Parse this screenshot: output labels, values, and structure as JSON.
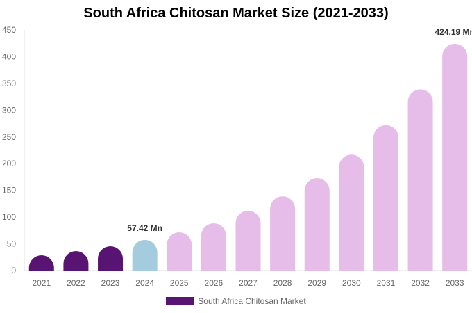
{
  "chart_data": {
    "type": "bar",
    "title": "South Africa Chitosan Market Size (2021-2033)",
    "categories": [
      "2021",
      "2022",
      "2023",
      "2024",
      "2025",
      "2026",
      "2027",
      "2028",
      "2029",
      "2030",
      "2031",
      "2032",
      "2033"
    ],
    "series": [
      {
        "name": "South Africa Chitosan Market",
        "values": [
          28.6,
          36.4,
          45.5,
          57.42,
          71.5,
          88.4,
          111.8,
          139,
          173,
          217,
          272,
          339,
          424.19
        ]
      }
    ],
    "data_labels": {
      "3": "57.42 Mn",
      "12": "424.19 Mn"
    },
    "yticks": [
      0,
      50,
      100,
      150,
      200,
      250,
      300,
      350,
      400,
      450
    ],
    "ylim": [
      0,
      450
    ],
    "xlabel": "",
    "ylabel": "",
    "grid": false,
    "legend_position": "bottom",
    "colors": {
      "historical": "#581472",
      "base_year": "#a4cbde",
      "forecast": "#e6bde8"
    },
    "color_groups": [
      "historical",
      "historical",
      "historical",
      "base_year",
      "forecast",
      "forecast",
      "forecast",
      "forecast",
      "forecast",
      "forecast",
      "forecast",
      "forecast",
      "forecast"
    ]
  }
}
